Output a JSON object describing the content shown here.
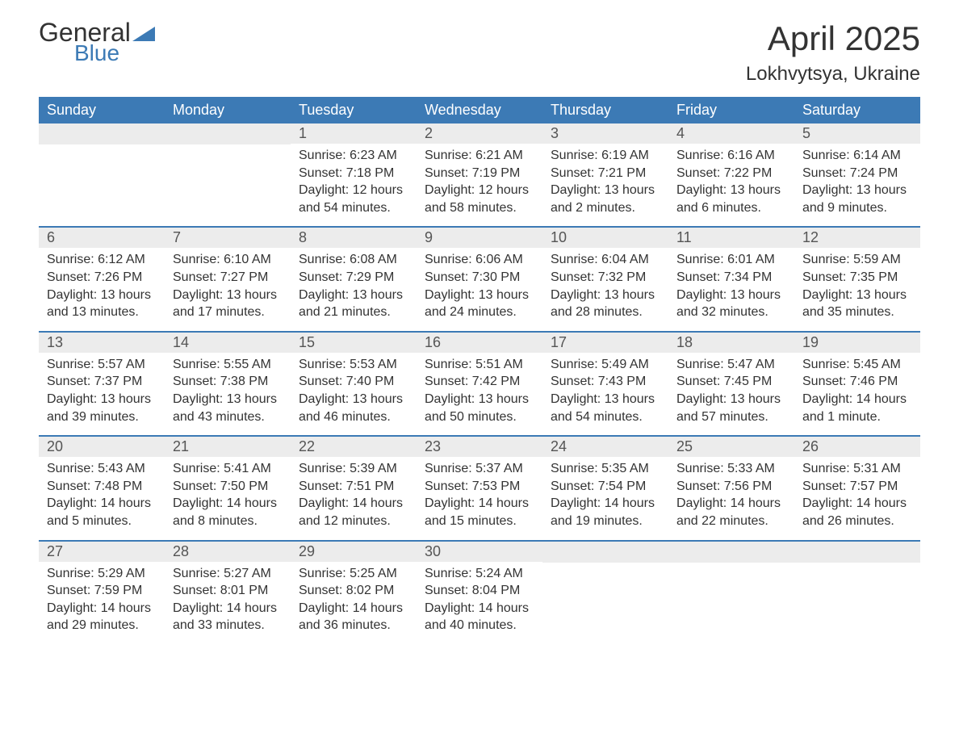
{
  "logo": {
    "text_main": "General",
    "text_blue": "Blue",
    "icon_color": "#3c7ab5"
  },
  "title": "April 2025",
  "location": "Lokhvytsya, Ukraine",
  "styling": {
    "header_bg": "#3c7ab5",
    "header_text_color": "#ffffff",
    "date_bar_bg": "#ececec",
    "week_border_color": "#3c7ab5",
    "body_text_color": "#333333",
    "page_bg": "#ffffff",
    "title_fontsize": 42,
    "location_fontsize": 24,
    "day_header_fontsize": 18,
    "date_fontsize": 18,
    "body_fontsize": 16
  },
  "day_names": [
    "Sunday",
    "Monday",
    "Tuesday",
    "Wednesday",
    "Thursday",
    "Friday",
    "Saturday"
  ],
  "weeks": [
    [
      {
        "date": "",
        "sunrise": "",
        "sunset": "",
        "daylight": ""
      },
      {
        "date": "",
        "sunrise": "",
        "sunset": "",
        "daylight": ""
      },
      {
        "date": "1",
        "sunrise": "Sunrise: 6:23 AM",
        "sunset": "Sunset: 7:18 PM",
        "daylight": "Daylight: 12 hours and 54 minutes."
      },
      {
        "date": "2",
        "sunrise": "Sunrise: 6:21 AM",
        "sunset": "Sunset: 7:19 PM",
        "daylight": "Daylight: 12 hours and 58 minutes."
      },
      {
        "date": "3",
        "sunrise": "Sunrise: 6:19 AM",
        "sunset": "Sunset: 7:21 PM",
        "daylight": "Daylight: 13 hours and 2 minutes."
      },
      {
        "date": "4",
        "sunrise": "Sunrise: 6:16 AM",
        "sunset": "Sunset: 7:22 PM",
        "daylight": "Daylight: 13 hours and 6 minutes."
      },
      {
        "date": "5",
        "sunrise": "Sunrise: 6:14 AM",
        "sunset": "Sunset: 7:24 PM",
        "daylight": "Daylight: 13 hours and 9 minutes."
      }
    ],
    [
      {
        "date": "6",
        "sunrise": "Sunrise: 6:12 AM",
        "sunset": "Sunset: 7:26 PM",
        "daylight": "Daylight: 13 hours and 13 minutes."
      },
      {
        "date": "7",
        "sunrise": "Sunrise: 6:10 AM",
        "sunset": "Sunset: 7:27 PM",
        "daylight": "Daylight: 13 hours and 17 minutes."
      },
      {
        "date": "8",
        "sunrise": "Sunrise: 6:08 AM",
        "sunset": "Sunset: 7:29 PM",
        "daylight": "Daylight: 13 hours and 21 minutes."
      },
      {
        "date": "9",
        "sunrise": "Sunrise: 6:06 AM",
        "sunset": "Sunset: 7:30 PM",
        "daylight": "Daylight: 13 hours and 24 minutes."
      },
      {
        "date": "10",
        "sunrise": "Sunrise: 6:04 AM",
        "sunset": "Sunset: 7:32 PM",
        "daylight": "Daylight: 13 hours and 28 minutes."
      },
      {
        "date": "11",
        "sunrise": "Sunrise: 6:01 AM",
        "sunset": "Sunset: 7:34 PM",
        "daylight": "Daylight: 13 hours and 32 minutes."
      },
      {
        "date": "12",
        "sunrise": "Sunrise: 5:59 AM",
        "sunset": "Sunset: 7:35 PM",
        "daylight": "Daylight: 13 hours and 35 minutes."
      }
    ],
    [
      {
        "date": "13",
        "sunrise": "Sunrise: 5:57 AM",
        "sunset": "Sunset: 7:37 PM",
        "daylight": "Daylight: 13 hours and 39 minutes."
      },
      {
        "date": "14",
        "sunrise": "Sunrise: 5:55 AM",
        "sunset": "Sunset: 7:38 PM",
        "daylight": "Daylight: 13 hours and 43 minutes."
      },
      {
        "date": "15",
        "sunrise": "Sunrise: 5:53 AM",
        "sunset": "Sunset: 7:40 PM",
        "daylight": "Daylight: 13 hours and 46 minutes."
      },
      {
        "date": "16",
        "sunrise": "Sunrise: 5:51 AM",
        "sunset": "Sunset: 7:42 PM",
        "daylight": "Daylight: 13 hours and 50 minutes."
      },
      {
        "date": "17",
        "sunrise": "Sunrise: 5:49 AM",
        "sunset": "Sunset: 7:43 PM",
        "daylight": "Daylight: 13 hours and 54 minutes."
      },
      {
        "date": "18",
        "sunrise": "Sunrise: 5:47 AM",
        "sunset": "Sunset: 7:45 PM",
        "daylight": "Daylight: 13 hours and 57 minutes."
      },
      {
        "date": "19",
        "sunrise": "Sunrise: 5:45 AM",
        "sunset": "Sunset: 7:46 PM",
        "daylight": "Daylight: 14 hours and 1 minute."
      }
    ],
    [
      {
        "date": "20",
        "sunrise": "Sunrise: 5:43 AM",
        "sunset": "Sunset: 7:48 PM",
        "daylight": "Daylight: 14 hours and 5 minutes."
      },
      {
        "date": "21",
        "sunrise": "Sunrise: 5:41 AM",
        "sunset": "Sunset: 7:50 PM",
        "daylight": "Daylight: 14 hours and 8 minutes."
      },
      {
        "date": "22",
        "sunrise": "Sunrise: 5:39 AM",
        "sunset": "Sunset: 7:51 PM",
        "daylight": "Daylight: 14 hours and 12 minutes."
      },
      {
        "date": "23",
        "sunrise": "Sunrise: 5:37 AM",
        "sunset": "Sunset: 7:53 PM",
        "daylight": "Daylight: 14 hours and 15 minutes."
      },
      {
        "date": "24",
        "sunrise": "Sunrise: 5:35 AM",
        "sunset": "Sunset: 7:54 PM",
        "daylight": "Daylight: 14 hours and 19 minutes."
      },
      {
        "date": "25",
        "sunrise": "Sunrise: 5:33 AM",
        "sunset": "Sunset: 7:56 PM",
        "daylight": "Daylight: 14 hours and 22 minutes."
      },
      {
        "date": "26",
        "sunrise": "Sunrise: 5:31 AM",
        "sunset": "Sunset: 7:57 PM",
        "daylight": "Daylight: 14 hours and 26 minutes."
      }
    ],
    [
      {
        "date": "27",
        "sunrise": "Sunrise: 5:29 AM",
        "sunset": "Sunset: 7:59 PM",
        "daylight": "Daylight: 14 hours and 29 minutes."
      },
      {
        "date": "28",
        "sunrise": "Sunrise: 5:27 AM",
        "sunset": "Sunset: 8:01 PM",
        "daylight": "Daylight: 14 hours and 33 minutes."
      },
      {
        "date": "29",
        "sunrise": "Sunrise: 5:25 AM",
        "sunset": "Sunset: 8:02 PM",
        "daylight": "Daylight: 14 hours and 36 minutes."
      },
      {
        "date": "30",
        "sunrise": "Sunrise: 5:24 AM",
        "sunset": "Sunset: 8:04 PM",
        "daylight": "Daylight: 14 hours and 40 minutes."
      },
      {
        "date": "",
        "sunrise": "",
        "sunset": "",
        "daylight": ""
      },
      {
        "date": "",
        "sunrise": "",
        "sunset": "",
        "daylight": ""
      },
      {
        "date": "",
        "sunrise": "",
        "sunset": "",
        "daylight": ""
      }
    ]
  ]
}
